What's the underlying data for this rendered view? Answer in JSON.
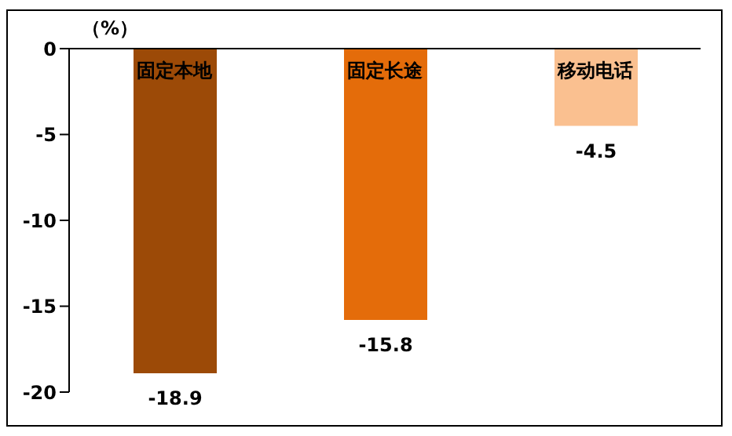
{
  "chart_data": {
    "type": "bar",
    "ylabel": "（%）",
    "categories": [
      "固定本地",
      "固定长途",
      "移动电话"
    ],
    "values": [
      -18.9,
      -15.8,
      -4.5
    ],
    "colors": [
      "#9c4a07",
      "#e46c0a",
      "#fac090"
    ],
    "ylim": [
      -20,
      0
    ],
    "yticks": [
      -20,
      -15,
      -10,
      -5,
      0
    ],
    "data_labels": true
  }
}
